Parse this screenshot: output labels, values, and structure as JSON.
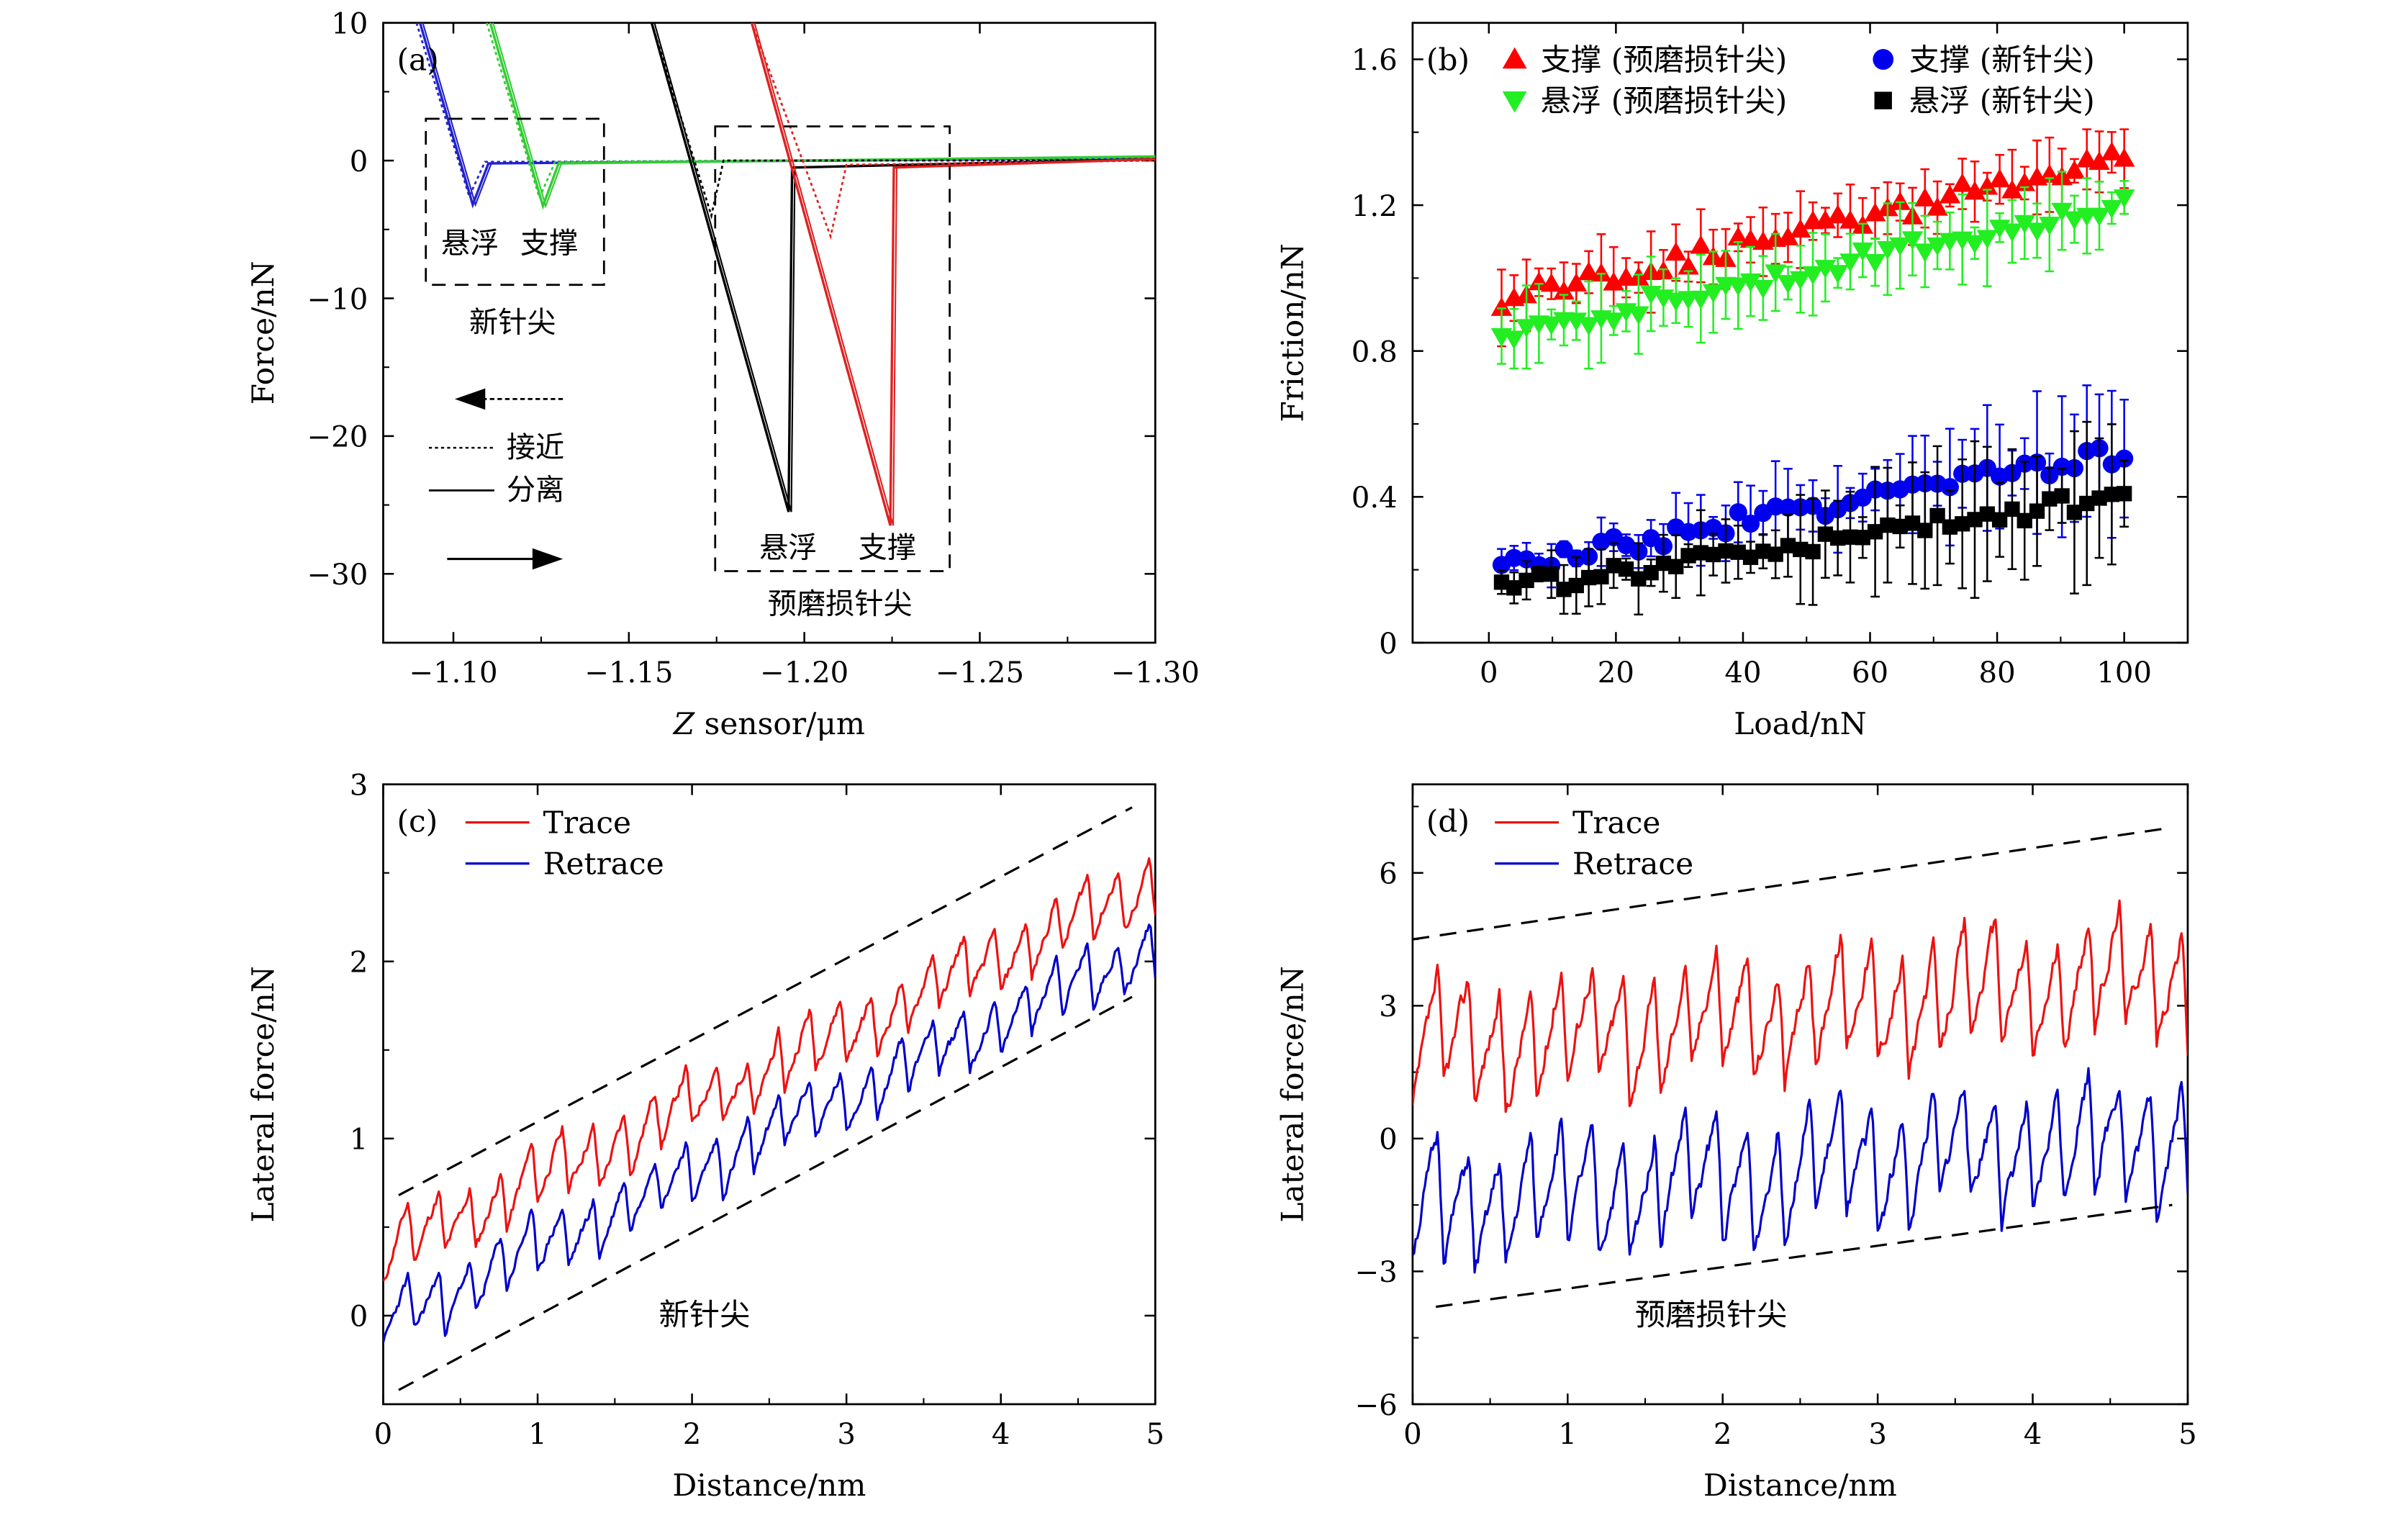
{
  "chart_data": [
    {
      "panel": "(a)",
      "type": "line",
      "xlabel": "Z sensor/μm",
      "ylabel": "Force/nN",
      "xlim": [
        -1.08,
        -1.3
      ],
      "ylim": [
        -35,
        10
      ],
      "xticks": [
        -1.1,
        -1.15,
        -1.2,
        -1.25,
        -1.3
      ],
      "xtick_labels": [
        "−1.10",
        "−1.15",
        "−1.20",
        "−1.25",
        "−1.30"
      ],
      "yticks": [
        10,
        0,
        -10,
        -20,
        -30
      ],
      "ytick_labels": [
        "10",
        "0",
        "−10",
        "−20",
        "−30"
      ],
      "series": [
        {
          "name": "悬浮 (新针尖)",
          "color": "#2222cc",
          "retract": [
            [
              -1.0905,
              10
            ],
            [
              -1.1055,
              -3.2
            ],
            [
              -1.11,
              -0.2
            ],
            [
              -1.3,
              0.2
            ]
          ],
          "approach": [
            [
              -1.0895,
              10
            ],
            [
              -1.1045,
              -2.6
            ],
            [
              -1.109,
              -0.1
            ],
            [
              -1.3,
              0.1
            ]
          ]
        },
        {
          "name": "支撑 (新针尖)",
          "color": "#33cc33",
          "retract": [
            [
              -1.1105,
              10
            ],
            [
              -1.1255,
              -3.3
            ],
            [
              -1.13,
              -0.2
            ],
            [
              -1.3,
              0.3
            ]
          ],
          "approach": [
            [
              -1.1095,
              10
            ],
            [
              -1.1245,
              -2.7
            ],
            [
              -1.129,
              -0.1
            ],
            [
              -1.3,
              0.2
            ]
          ]
        },
        {
          "name": "悬浮 (预磨损针尖)",
          "color": "#000000",
          "retract": [
            [
              -1.1565,
              10
            ],
            [
              -1.1955,
              -25.5
            ],
            [
              -1.1965,
              -0.5
            ],
            [
              -1.3,
              0.1
            ]
          ],
          "approach": [
            [
              -1.1565,
              10
            ],
            [
              -1.1735,
              -4.0
            ],
            [
              -1.177,
              0.0
            ],
            [
              -1.3,
              0.0
            ]
          ]
        },
        {
          "name": "支撑 (预磨损针尖)",
          "color": "#dd2222",
          "retract": [
            [
              -1.185,
              10
            ],
            [
              -1.2245,
              -26.5
            ],
            [
              -1.2255,
              -0.5
            ],
            [
              -1.3,
              0.1
            ]
          ],
          "approach": [
            [
              -1.185,
              10
            ],
            [
              -1.2075,
              -5.5
            ],
            [
              -1.212,
              -0.3
            ],
            [
              -1.3,
              0.0
            ]
          ]
        }
      ],
      "annotations": {
        "panel_label": "(a)",
        "new_tip": "新针尖",
        "worn_tip": "预磨损针尖",
        "suspended": "悬浮",
        "supported": "支撑",
        "approach": "接近",
        "separate": "分离"
      }
    },
    {
      "panel": "(b)",
      "type": "scatter",
      "xlabel": "Load/nN",
      "ylabel": "Friction/nN",
      "xlim": [
        -12,
        110
      ],
      "ylim": [
        0,
        1.7
      ],
      "xticks": [
        0,
        20,
        40,
        60,
        80,
        100
      ],
      "yticks": [
        0,
        0.4,
        0.8,
        1.2,
        1.6
      ],
      "ytick_labels": [
        "0",
        "0.4",
        "0.8",
        "1.2",
        "1.6"
      ],
      "series": [
        {
          "name": "支撑 (预磨损针尖)",
          "color": "#ff0000",
          "marker": "triangle-up",
          "start": 0.94,
          "end": 1.33,
          "err": 0.06
        },
        {
          "name": "悬浮 (预磨损针尖)",
          "color": "#22ee22",
          "marker": "triangle-down",
          "start": 0.85,
          "end": 1.2,
          "err": 0.07
        },
        {
          "name": "支撑 (新针尖)",
          "color": "#0000ee",
          "marker": "circle",
          "start": 0.21,
          "end": 0.52,
          "err": 0.06
        },
        {
          "name": "悬浮 (新针尖)",
          "color": "#000000",
          "marker": "square",
          "start": 0.15,
          "end": 0.4,
          "err": 0.07
        }
      ],
      "x_points": {
        "from": 2,
        "to": 100,
        "count": 51
      }
    },
    {
      "panel": "(c)",
      "type": "line",
      "xlabel": "Distance/nm",
      "ylabel": "Lateral force/nN",
      "xlim": [
        0,
        5
      ],
      "ylim": [
        -0.5,
        3
      ],
      "xticks": [
        0,
        1,
        2,
        3,
        4,
        5
      ],
      "yticks": [
        0,
        1,
        2,
        3
      ],
      "series": [
        {
          "name": "Trace",
          "color": "#ee1111",
          "offset": 0.35,
          "slope": 0.42,
          "amp": 0.35,
          "seed": 11
        },
        {
          "name": "Retrace",
          "color": "#0000cc",
          "offset": -0.05,
          "slope": 0.43,
          "amp": 0.33,
          "seed": 23
        }
      ],
      "envelope": [
        [
          [
            0.1,
            0.68
          ],
          [
            4.85,
            2.87
          ]
        ],
        [
          [
            0.1,
            -0.42
          ],
          [
            4.85,
            1.8
          ]
        ]
      ],
      "annotation": "新针尖"
    },
    {
      "panel": "(d)",
      "type": "line",
      "xlabel": "Distance/nm",
      "ylabel": "Lateral force/nN",
      "xlim": [
        0,
        5
      ],
      "ylim": [
        -6,
        8
      ],
      "xticks": [
        0,
        1,
        2,
        3,
        4,
        5
      ],
      "yticks": [
        -6,
        -3,
        0,
        3,
        6
      ],
      "ytick_labels": [
        "−6",
        "−3",
        "0",
        "3",
        "6"
      ],
      "series": [
        {
          "name": "Trace",
          "color": "#ee1111",
          "offset": 2.0,
          "slope": 0.35,
          "amp": 2.6,
          "seed": 37
        },
        {
          "name": "Retrace",
          "color": "#0000cc",
          "offset": -1.6,
          "slope": 0.35,
          "amp": 2.6,
          "seed": 51
        }
      ],
      "envelope": [
        [
          [
            0,
            4.5
          ],
          [
            4.85,
            7.0
          ]
        ],
        [
          [
            0.15,
            -3.8
          ],
          [
            4.9,
            -1.5
          ]
        ]
      ],
      "annotation": "预磨损针尖"
    }
  ]
}
